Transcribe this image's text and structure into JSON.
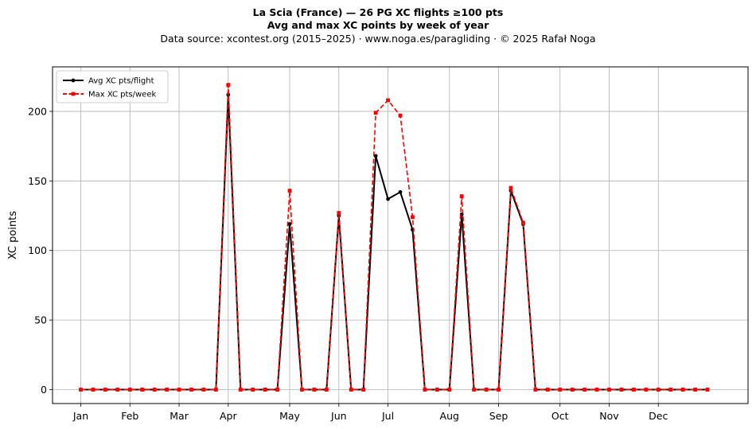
{
  "chart_data": {
    "type": "line",
    "title": "La Scia (France)  —  26 PG XC flights ≥100 pts",
    "subtitle": "Avg and max XC points by week of year",
    "source_note": "Data source: xcontest.org (2015–2025)  ·  www.noga.es/paragliding  ·  © 2025 Rafał Noga",
    "xlabel": "",
    "ylabel": "XC points",
    "ylim": [
      -10,
      232
    ],
    "y_ticks": [
      0,
      50,
      100,
      150,
      200
    ],
    "x_ticks": [
      {
        "label": "Jan",
        "week": 1
      },
      {
        "label": "Feb",
        "week": 5
      },
      {
        "label": "Mar",
        "week": 9
      },
      {
        "label": "Apr",
        "week": 13
      },
      {
        "label": "May",
        "week": 18
      },
      {
        "label": "Jun",
        "week": 22
      },
      {
        "label": "Jul",
        "week": 26
      },
      {
        "label": "Aug",
        "week": 31
      },
      {
        "label": "Sep",
        "week": 35
      },
      {
        "label": "Oct",
        "week": 40
      },
      {
        "label": "Nov",
        "week": 44
      },
      {
        "label": "Dec",
        "week": 48
      }
    ],
    "x": [
      1,
      2,
      3,
      4,
      5,
      6,
      7,
      8,
      9,
      10,
      11,
      12,
      13,
      14,
      15,
      16,
      17,
      18,
      19,
      20,
      21,
      22,
      23,
      24,
      25,
      26,
      27,
      28,
      29,
      30,
      31,
      32,
      33,
      34,
      35,
      36,
      37,
      38,
      39,
      40,
      41,
      42,
      43,
      44,
      45,
      46,
      47,
      48,
      49,
      50,
      51,
      52
    ],
    "grid": true,
    "legend_position": "top-left",
    "series": [
      {
        "name": "Avg XC pts/flight",
        "color": "#000000",
        "style": "solid",
        "marker": "circle",
        "values": [
          0,
          0,
          0,
          0,
          0,
          0,
          0,
          0,
          0,
          0,
          0,
          0,
          212,
          0,
          0,
          0,
          0,
          119,
          0,
          0,
          0,
          125,
          0,
          0,
          168,
          137,
          142,
          115,
          0,
          0,
          0,
          126,
          0,
          0,
          0,
          143,
          119,
          0,
          0,
          0,
          0,
          0,
          0,
          0,
          0,
          0,
          0,
          0,
          0,
          0,
          0,
          0
        ]
      },
      {
        "name": "Max XC pts/week",
        "color": "#ff0000",
        "style": "dashed",
        "marker": "square",
        "values": [
          0,
          0,
          0,
          0,
          0,
          0,
          0,
          0,
          0,
          0,
          0,
          0,
          219,
          0,
          0,
          0,
          0,
          143,
          0,
          0,
          0,
          127,
          0,
          0,
          199,
          208,
          197,
          124,
          0,
          0,
          0,
          139,
          0,
          0,
          0,
          145,
          120,
          0,
          0,
          0,
          0,
          0,
          0,
          0,
          0,
          0,
          0,
          0,
          0,
          0,
          0,
          0
        ]
      }
    ]
  }
}
